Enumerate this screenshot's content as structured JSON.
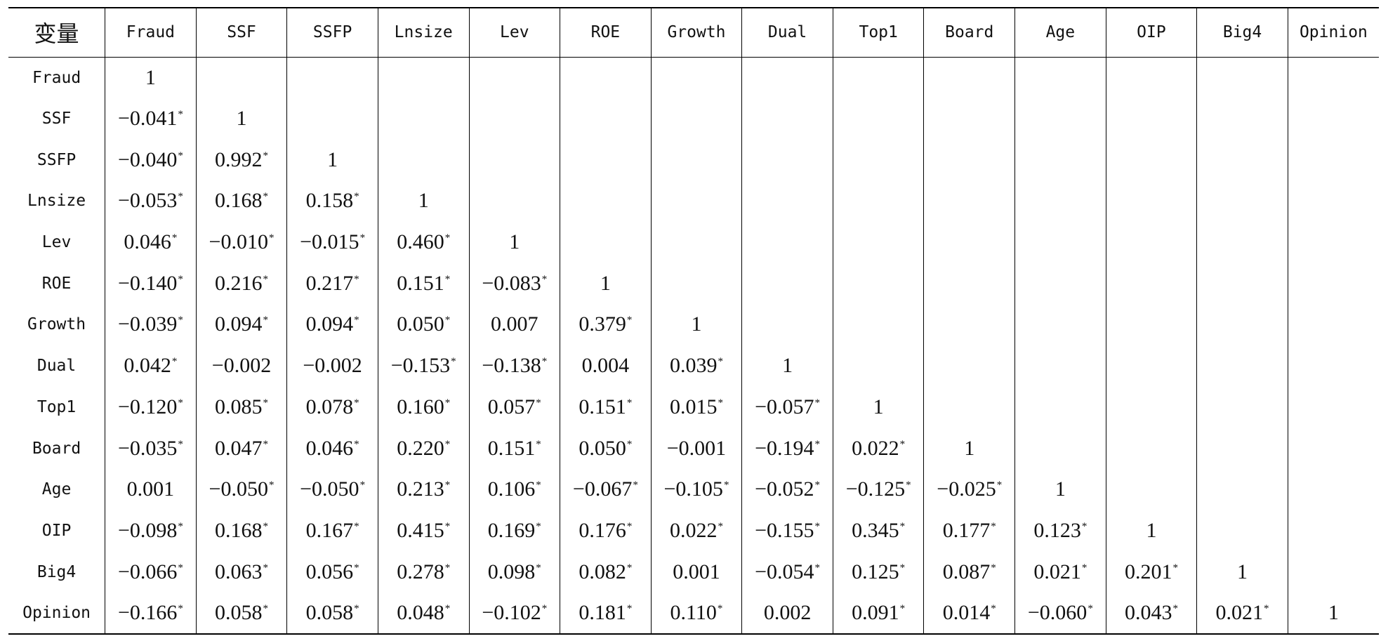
{
  "table": {
    "corner": "变量",
    "headers": [
      "Fraud",
      "SSF",
      "SSFP",
      "Lnsize",
      "Lev",
      "ROE",
      "Growth",
      "Dual",
      "Top1",
      "Board",
      "Age",
      "OIP",
      "Big4",
      "Opinion"
    ],
    "rows": [
      {
        "label": "Fraud",
        "cells": [
          {
            "v": "1",
            "s": ""
          },
          {
            "v": "",
            "s": ""
          },
          {
            "v": "",
            "s": ""
          },
          {
            "v": "",
            "s": ""
          },
          {
            "v": "",
            "s": ""
          },
          {
            "v": "",
            "s": ""
          },
          {
            "v": "",
            "s": ""
          },
          {
            "v": "",
            "s": ""
          },
          {
            "v": "",
            "s": ""
          },
          {
            "v": "",
            "s": ""
          },
          {
            "v": "",
            "s": ""
          },
          {
            "v": "",
            "s": ""
          },
          {
            "v": "",
            "s": ""
          },
          {
            "v": "",
            "s": ""
          }
        ]
      },
      {
        "label": "SSF",
        "cells": [
          {
            "v": "−0.041",
            "s": "*"
          },
          {
            "v": "1",
            "s": ""
          },
          {
            "v": "",
            "s": ""
          },
          {
            "v": "",
            "s": ""
          },
          {
            "v": "",
            "s": ""
          },
          {
            "v": "",
            "s": ""
          },
          {
            "v": "",
            "s": ""
          },
          {
            "v": "",
            "s": ""
          },
          {
            "v": "",
            "s": ""
          },
          {
            "v": "",
            "s": ""
          },
          {
            "v": "",
            "s": ""
          },
          {
            "v": "",
            "s": ""
          },
          {
            "v": "",
            "s": ""
          },
          {
            "v": "",
            "s": ""
          }
        ]
      },
      {
        "label": "SSFP",
        "cells": [
          {
            "v": "−0.040",
            "s": "*"
          },
          {
            "v": "0.992",
            "s": "*"
          },
          {
            "v": "1",
            "s": ""
          },
          {
            "v": "",
            "s": ""
          },
          {
            "v": "",
            "s": ""
          },
          {
            "v": "",
            "s": ""
          },
          {
            "v": "",
            "s": ""
          },
          {
            "v": "",
            "s": ""
          },
          {
            "v": "",
            "s": ""
          },
          {
            "v": "",
            "s": ""
          },
          {
            "v": "",
            "s": ""
          },
          {
            "v": "",
            "s": ""
          },
          {
            "v": "",
            "s": ""
          },
          {
            "v": "",
            "s": ""
          }
        ]
      },
      {
        "label": "Lnsize",
        "cells": [
          {
            "v": "−0.053",
            "s": "*"
          },
          {
            "v": "0.168",
            "s": "*"
          },
          {
            "v": "0.158",
            "s": "*"
          },
          {
            "v": "1",
            "s": ""
          },
          {
            "v": "",
            "s": ""
          },
          {
            "v": "",
            "s": ""
          },
          {
            "v": "",
            "s": ""
          },
          {
            "v": "",
            "s": ""
          },
          {
            "v": "",
            "s": ""
          },
          {
            "v": "",
            "s": ""
          },
          {
            "v": "",
            "s": ""
          },
          {
            "v": "",
            "s": ""
          },
          {
            "v": "",
            "s": ""
          },
          {
            "v": "",
            "s": ""
          }
        ]
      },
      {
        "label": "Lev",
        "cells": [
          {
            "v": "0.046",
            "s": "*"
          },
          {
            "v": "−0.010",
            "s": "*"
          },
          {
            "v": "−0.015",
            "s": "*"
          },
          {
            "v": "0.460",
            "s": "*"
          },
          {
            "v": "1",
            "s": ""
          },
          {
            "v": "",
            "s": ""
          },
          {
            "v": "",
            "s": ""
          },
          {
            "v": "",
            "s": ""
          },
          {
            "v": "",
            "s": ""
          },
          {
            "v": "",
            "s": ""
          },
          {
            "v": "",
            "s": ""
          },
          {
            "v": "",
            "s": ""
          },
          {
            "v": "",
            "s": ""
          },
          {
            "v": "",
            "s": ""
          }
        ]
      },
      {
        "label": "ROE",
        "cells": [
          {
            "v": "−0.140",
            "s": "*"
          },
          {
            "v": "0.216",
            "s": "*"
          },
          {
            "v": "0.217",
            "s": "*"
          },
          {
            "v": "0.151",
            "s": "*"
          },
          {
            "v": "−0.083",
            "s": "*"
          },
          {
            "v": "1",
            "s": ""
          },
          {
            "v": "",
            "s": ""
          },
          {
            "v": "",
            "s": ""
          },
          {
            "v": "",
            "s": ""
          },
          {
            "v": "",
            "s": ""
          },
          {
            "v": "",
            "s": ""
          },
          {
            "v": "",
            "s": ""
          },
          {
            "v": "",
            "s": ""
          },
          {
            "v": "",
            "s": ""
          }
        ]
      },
      {
        "label": "Growth",
        "cells": [
          {
            "v": "−0.039",
            "s": "*"
          },
          {
            "v": "0.094",
            "s": "*"
          },
          {
            "v": "0.094",
            "s": "*"
          },
          {
            "v": "0.050",
            "s": "*"
          },
          {
            "v": "0.007",
            "s": ""
          },
          {
            "v": "0.379",
            "s": "*"
          },
          {
            "v": "1",
            "s": ""
          },
          {
            "v": "",
            "s": ""
          },
          {
            "v": "",
            "s": ""
          },
          {
            "v": "",
            "s": ""
          },
          {
            "v": "",
            "s": ""
          },
          {
            "v": "",
            "s": ""
          },
          {
            "v": "",
            "s": ""
          },
          {
            "v": "",
            "s": ""
          }
        ]
      },
      {
        "label": "Dual",
        "cells": [
          {
            "v": "0.042",
            "s": "*"
          },
          {
            "v": "−0.002",
            "s": ""
          },
          {
            "v": "−0.002",
            "s": ""
          },
          {
            "v": "−0.153",
            "s": "*"
          },
          {
            "v": "−0.138",
            "s": "*"
          },
          {
            "v": "0.004",
            "s": ""
          },
          {
            "v": "0.039",
            "s": "*"
          },
          {
            "v": "1",
            "s": ""
          },
          {
            "v": "",
            "s": ""
          },
          {
            "v": "",
            "s": ""
          },
          {
            "v": "",
            "s": ""
          },
          {
            "v": "",
            "s": ""
          },
          {
            "v": "",
            "s": ""
          },
          {
            "v": "",
            "s": ""
          }
        ]
      },
      {
        "label": "Top1",
        "cells": [
          {
            "v": "−0.120",
            "s": "*"
          },
          {
            "v": "0.085",
            "s": "*"
          },
          {
            "v": "0.078",
            "s": "*"
          },
          {
            "v": "0.160",
            "s": "*"
          },
          {
            "v": "0.057",
            "s": "*"
          },
          {
            "v": "0.151",
            "s": "*"
          },
          {
            "v": "0.015",
            "s": "*"
          },
          {
            "v": "−0.057",
            "s": "*"
          },
          {
            "v": "1",
            "s": ""
          },
          {
            "v": "",
            "s": ""
          },
          {
            "v": "",
            "s": ""
          },
          {
            "v": "",
            "s": ""
          },
          {
            "v": "",
            "s": ""
          },
          {
            "v": "",
            "s": ""
          }
        ]
      },
      {
        "label": "Board",
        "cells": [
          {
            "v": "−0.035",
            "s": "*"
          },
          {
            "v": "0.047",
            "s": "*"
          },
          {
            "v": "0.046",
            "s": "*"
          },
          {
            "v": "0.220",
            "s": "*"
          },
          {
            "v": "0.151",
            "s": "*"
          },
          {
            "v": "0.050",
            "s": "*"
          },
          {
            "v": "−0.001",
            "s": ""
          },
          {
            "v": "−0.194",
            "s": "*"
          },
          {
            "v": "0.022",
            "s": "*"
          },
          {
            "v": "1",
            "s": ""
          },
          {
            "v": "",
            "s": ""
          },
          {
            "v": "",
            "s": ""
          },
          {
            "v": "",
            "s": ""
          },
          {
            "v": "",
            "s": ""
          }
        ]
      },
      {
        "label": "Age",
        "cells": [
          {
            "v": "0.001",
            "s": ""
          },
          {
            "v": "−0.050",
            "s": "*"
          },
          {
            "v": "−0.050",
            "s": "*"
          },
          {
            "v": "0.213",
            "s": "*"
          },
          {
            "v": "0.106",
            "s": "*"
          },
          {
            "v": "−0.067",
            "s": "*"
          },
          {
            "v": "−0.105",
            "s": "*"
          },
          {
            "v": "−0.052",
            "s": "*"
          },
          {
            "v": "−0.125",
            "s": "*"
          },
          {
            "v": "−0.025",
            "s": "*"
          },
          {
            "v": "1",
            "s": ""
          },
          {
            "v": "",
            "s": ""
          },
          {
            "v": "",
            "s": ""
          },
          {
            "v": "",
            "s": ""
          }
        ]
      },
      {
        "label": "OIP",
        "cells": [
          {
            "v": "−0.098",
            "s": "*"
          },
          {
            "v": "0.168",
            "s": "*"
          },
          {
            "v": "0.167",
            "s": "*"
          },
          {
            "v": "0.415",
            "s": "*"
          },
          {
            "v": "0.169",
            "s": "*"
          },
          {
            "v": "0.176",
            "s": "*"
          },
          {
            "v": "0.022",
            "s": "*"
          },
          {
            "v": "−0.155",
            "s": "*"
          },
          {
            "v": "0.345",
            "s": "*"
          },
          {
            "v": "0.177",
            "s": "*"
          },
          {
            "v": "0.123",
            "s": "*"
          },
          {
            "v": "1",
            "s": ""
          },
          {
            "v": "",
            "s": ""
          },
          {
            "v": "",
            "s": ""
          }
        ]
      },
      {
        "label": "Big4",
        "cells": [
          {
            "v": "−0.066",
            "s": "*"
          },
          {
            "v": "0.063",
            "s": "*"
          },
          {
            "v": "0.056",
            "s": "*"
          },
          {
            "v": "0.278",
            "s": "*"
          },
          {
            "v": "0.098",
            "s": "*"
          },
          {
            "v": "0.082",
            "s": "*"
          },
          {
            "v": "0.001",
            "s": ""
          },
          {
            "v": "−0.054",
            "s": "*"
          },
          {
            "v": "0.125",
            "s": "*"
          },
          {
            "v": "0.087",
            "s": "*"
          },
          {
            "v": "0.021",
            "s": "*"
          },
          {
            "v": "0.201",
            "s": "*"
          },
          {
            "v": "1",
            "s": ""
          },
          {
            "v": "",
            "s": ""
          }
        ]
      },
      {
        "label": "Opinion",
        "cells": [
          {
            "v": "−0.166",
            "s": "*"
          },
          {
            "v": "0.058",
            "s": "*"
          },
          {
            "v": "0.058",
            "s": "*"
          },
          {
            "v": "0.048",
            "s": "*"
          },
          {
            "v": "−0.102",
            "s": "*"
          },
          {
            "v": "0.181",
            "s": "*"
          },
          {
            "v": "0.110",
            "s": "*"
          },
          {
            "v": "0.002",
            "s": ""
          },
          {
            "v": "0.091",
            "s": "*"
          },
          {
            "v": "0.014",
            "s": "*"
          },
          {
            "v": "−0.060",
            "s": "*"
          },
          {
            "v": "0.043",
            "s": "*"
          },
          {
            "v": "0.021",
            "s": "*"
          },
          {
            "v": "1",
            "s": ""
          }
        ]
      }
    ]
  }
}
